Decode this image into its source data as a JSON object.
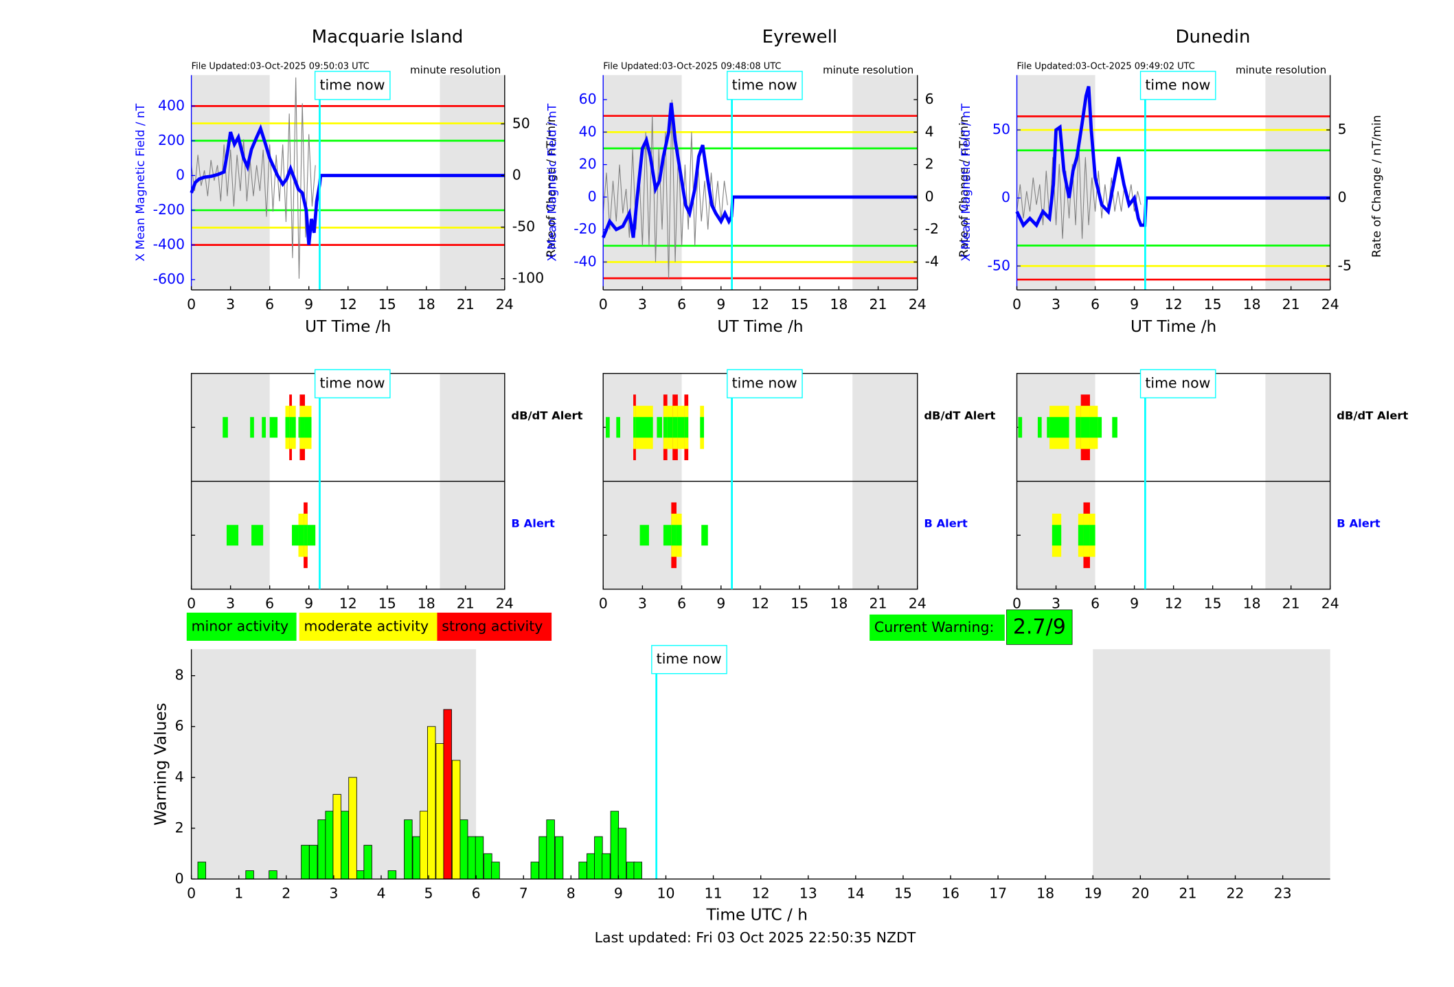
{
  "chart_data": [
    {
      "type": "line",
      "title": "Macquarie Island",
      "note_left": "File Updated:03-Oct-2025 09:50:03 UTC",
      "note_right": "minute resolution",
      "xlabel": "UT Time /h",
      "ylabel": "X Mean Magnetic Field / nT",
      "y2label": "Rate of Change / nT/min",
      "xlim": [
        0,
        24
      ],
      "xticks": [
        0,
        3,
        6,
        9,
        12,
        15,
        18,
        21,
        24
      ],
      "ylim": [
        -659,
        578
      ],
      "yticks": [
        -600,
        -400,
        -200,
        0,
        200,
        400
      ],
      "y2lim": [
        -110.9,
        97.3
      ],
      "y2ticks": [
        -100,
        -50,
        0,
        50
      ],
      "thresholds": [
        {
          "value": 400,
          "color": "#ff0000"
        },
        {
          "value": 300,
          "color": "#ffff00"
        },
        {
          "value": 200,
          "color": "#00ff00"
        },
        {
          "value": -200,
          "color": "#00ff00"
        },
        {
          "value": -300,
          "color": "#ffff00"
        },
        {
          "value": -400,
          "color": "#ff0000"
        }
      ],
      "night": [
        [
          0,
          6
        ],
        [
          19.04,
          24
        ]
      ],
      "time_now": {
        "label": "time now",
        "value": 9.83
      },
      "series": [
        {
          "color": "#808080",
          "axis": "y2",
          "x": [
            0,
            0.25,
            0.5,
            0.75,
            1,
            1.25,
            1.5,
            1.75,
            2,
            2.25,
            2.5,
            2.75,
            3,
            3.25,
            3.5,
            3.75,
            4,
            4.25,
            4.5,
            4.75,
            5,
            5.25,
            5.5,
            5.75,
            6,
            6.25,
            6.5,
            6.75,
            7,
            7.25,
            7.5,
            7.75,
            8,
            8.25,
            8.5,
            8.75,
            9,
            9.25,
            9.5
          ],
          "values": [
            10,
            -15,
            20,
            -10,
            5,
            -20,
            15,
            -5,
            10,
            -25,
            30,
            -20,
            25,
            -30,
            20,
            -15,
            35,
            -25,
            15,
            -20,
            10,
            -15,
            25,
            -40,
            30,
            -35,
            20,
            -25,
            30,
            -45,
            60,
            -80,
            95,
            -100,
            70,
            -60,
            40,
            -30,
            10
          ]
        },
        {
          "color": "#0000ff",
          "x": [
            0,
            0.3,
            0.6,
            1,
            1.5,
            2,
            2.5,
            2.8,
            3,
            3.3,
            3.6,
            4,
            4.3,
            4.6,
            5,
            5.3,
            5.6,
            6,
            6.3,
            6.6,
            7,
            7.3,
            7.6,
            7.9,
            8.2,
            8.5,
            8.8,
            9,
            9.2,
            9.4,
            9.6,
            9.83,
            9.9,
            24
          ],
          "values": [
            -100,
            -40,
            -20,
            -10,
            -5,
            5,
            20,
            150,
            250,
            180,
            220,
            100,
            50,
            150,
            220,
            270,
            200,
            100,
            50,
            0,
            -50,
            -20,
            40,
            -20,
            -80,
            -100,
            -200,
            -400,
            -250,
            -330,
            -150,
            -50,
            0,
            0
          ]
        }
      ]
    },
    {
      "type": "line",
      "title": "Eyrewell",
      "note_left": "File Updated:03-Oct-2025 09:48:08 UTC",
      "note_right": "minute resolution",
      "xlabel": "UT Time /h",
      "ylabel": "X Mean Magnetic Field / nT",
      "y2label": "Rate of Change / nT/min",
      "xlim": [
        0,
        24
      ],
      "xticks": [
        0,
        3,
        6,
        9,
        12,
        15,
        18,
        21,
        24
      ],
      "ylim": [
        -57.2,
        75.1
      ],
      "yticks": [
        -40,
        -20,
        0,
        20,
        40,
        60
      ],
      "y2lim": [
        -5.72,
        7.51
      ],
      "y2ticks": [
        -4,
        -2,
        0,
        2,
        4,
        6
      ],
      "thresholds": [
        {
          "value": 50,
          "color": "#ff0000"
        },
        {
          "value": 40,
          "color": "#ffff00"
        },
        {
          "value": 30,
          "color": "#00ff00"
        },
        {
          "value": -30,
          "color": "#00ff00"
        },
        {
          "value": -40,
          "color": "#ffff00"
        },
        {
          "value": -50,
          "color": "#ff0000"
        }
      ],
      "night": [
        [
          0,
          6
        ],
        [
          19.04,
          24
        ]
      ],
      "time_now": {
        "label": "time now",
        "value": 9.83
      },
      "series": [
        {
          "color": "#808080",
          "axis": "y2",
          "x": [
            0,
            0.25,
            0.5,
            0.75,
            1,
            1.25,
            1.5,
            1.75,
            2,
            2.25,
            2.5,
            2.75,
            3,
            3.25,
            3.5,
            3.75,
            4,
            4.25,
            4.5,
            4.75,
            5,
            5.25,
            5.5,
            5.75,
            6,
            6.25,
            6.5,
            6.75,
            7,
            7.25,
            7.5,
            7.75,
            8,
            8.25,
            8.5,
            8.75,
            9,
            9.25,
            9.5
          ],
          "values": [
            -1,
            1.5,
            -2,
            1,
            -1.5,
            2,
            -1,
            0.5,
            -2.5,
            3,
            -2,
            1.5,
            -3,
            4,
            -3,
            5,
            -4,
            3,
            -2,
            4,
            -5,
            6,
            -4,
            3,
            -3,
            2,
            -2,
            4,
            -3,
            2,
            -1.5,
            1,
            -2,
            1.5,
            -1,
            1,
            -1.5,
            1,
            -0.5
          ]
        },
        {
          "color": "#0000ff",
          "x": [
            0,
            0.5,
            1,
            1.5,
            2,
            2.3,
            2.6,
            3,
            3.3,
            3.6,
            4,
            4.3,
            4.6,
            5,
            5.2,
            5.5,
            5.8,
            6,
            6.3,
            6.6,
            7,
            7.3,
            7.6,
            8,
            8.3,
            8.6,
            9,
            9.3,
            9.6,
            9.8,
            9.9,
            24
          ],
          "values": [
            -25,
            -15,
            -20,
            -18,
            -10,
            -25,
            0,
            30,
            35,
            25,
            5,
            10,
            25,
            40,
            58,
            35,
            20,
            10,
            -5,
            -10,
            5,
            25,
            32,
            10,
            -5,
            -10,
            -15,
            -10,
            -15,
            -12,
            0,
            0
          ]
        }
      ]
    },
    {
      "type": "line",
      "title": "Dunedin",
      "note_left": "File Updated:03-Oct-2025 09:49:02 UTC",
      "note_right": "minute resolution",
      "xlabel": "UT Time /h",
      "ylabel": "X Mean Magnetic Field / nT",
      "y2label": "Rate of Change / nT/min",
      "xlim": [
        0,
        24
      ],
      "xticks": [
        0,
        3,
        6,
        9,
        12,
        15,
        18,
        21,
        24
      ],
      "ylim": [
        -67.6,
        90.3
      ],
      "yticks": [
        -50,
        0,
        50
      ],
      "y2lim": [
        -6.76,
        9.03
      ],
      "y2ticks": [
        -5,
        0,
        5
      ],
      "thresholds": [
        {
          "value": 60,
          "color": "#ff0000"
        },
        {
          "value": 50,
          "color": "#ffff00"
        },
        {
          "value": 35,
          "color": "#00ff00"
        },
        {
          "value": -35,
          "color": "#00ff00"
        },
        {
          "value": -50,
          "color": "#ffff00"
        },
        {
          "value": -60,
          "color": "#ff0000"
        }
      ],
      "night": [
        [
          0,
          6
        ],
        [
          19.04,
          24
        ]
      ],
      "time_now": {
        "label": "time now",
        "value": 9.83
      },
      "series": [
        {
          "color": "#808080",
          "axis": "y2",
          "x": [
            0,
            0.25,
            0.5,
            0.75,
            1,
            1.25,
            1.5,
            1.75,
            2,
            2.25,
            2.5,
            2.75,
            3,
            3.25,
            3.5,
            3.75,
            4,
            4.25,
            4.5,
            4.75,
            5,
            5.25,
            5.5,
            5.75,
            6,
            6.25,
            6.5,
            6.75,
            7,
            7.25,
            7.5,
            7.75,
            8,
            8.25,
            8.5,
            8.75,
            9,
            9.25,
            9.5
          ],
          "values": [
            -1,
            1,
            -1.5,
            0.5,
            -1,
            1.5,
            -0.5,
            1,
            -2,
            2,
            -1.5,
            3,
            -2,
            2.5,
            -3,
            2,
            -1.5,
            2.5,
            -2,
            4,
            -3,
            3,
            -2,
            1.5,
            -1,
            2,
            -1.5,
            1,
            -1,
            1.5,
            -1,
            0.5,
            -1,
            1,
            -0.5,
            1,
            -1,
            0.5,
            -0.5
          ]
        },
        {
          "color": "#0000ff",
          "x": [
            0,
            0.5,
            1,
            1.5,
            2,
            2.5,
            2.8,
            3,
            3.3,
            3.6,
            4,
            4.3,
            4.6,
            5,
            5.3,
            5.5,
            5.7,
            6,
            6.5,
            7,
            7.5,
            7.8,
            8.2,
            8.6,
            9,
            9.3,
            9.5,
            9.8,
            9.9,
            24
          ],
          "values": [
            -10,
            -20,
            -15,
            -20,
            -10,
            -15,
            10,
            50,
            52,
            20,
            0,
            20,
            30,
            55,
            75,
            82,
            50,
            15,
            -5,
            -10,
            15,
            30,
            10,
            -5,
            0,
            -15,
            -20,
            -20,
            0,
            0
          ]
        }
      ]
    },
    {
      "type": "alert",
      "xlim": [
        0,
        24
      ],
      "xticks": [
        0,
        3,
        6,
        9,
        12,
        15,
        18,
        21,
        24
      ],
      "night": [
        [
          0,
          6
        ],
        [
          19.04,
          24
        ]
      ],
      "time_now": {
        "label": "time now",
        "value": 9.83
      },
      "level_colors": [
        "#00ff00",
        "#ffff00",
        "#ff0000"
      ],
      "series": [
        {
          "name": "dB/dT Alert",
          "color": "#000000",
          "start": [
            2.4,
            4.5,
            5.4,
            6.0,
            7.2,
            7.5,
            7.7,
            8.2,
            8.3,
            8.7
          ],
          "end": [
            2.8,
            4.8,
            5.7,
            6.6,
            7.5,
            7.7,
            8.0,
            8.3,
            8.7,
            9.2
          ],
          "level": [
            1,
            1,
            1,
            1,
            2,
            3,
            2,
            1,
            3,
            2
          ]
        },
        {
          "name": "B Alert",
          "color": "#0000ff",
          "start": [
            2.7,
            4.6,
            7.7,
            8.2,
            8.6,
            8.9
          ],
          "end": [
            3.6,
            5.5,
            8.2,
            8.6,
            8.9,
            9.5
          ],
          "level": [
            1,
            1,
            1,
            2,
            3,
            1
          ]
        }
      ]
    },
    {
      "type": "alert",
      "xlim": [
        0,
        24
      ],
      "xticks": [
        0,
        3,
        6,
        9,
        12,
        15,
        18,
        21,
        24
      ],
      "night": [
        [
          0,
          6
        ],
        [
          19.04,
          24
        ]
      ],
      "time_now": {
        "label": "time now",
        "value": 9.83
      },
      "level_colors": [
        "#00ff00",
        "#ffff00",
        "#ff0000"
      ],
      "series": [
        {
          "name": "dB/dT Alert",
          "color": "#000000",
          "start": [
            0.2,
            1.0,
            2.3,
            2.5,
            4.1,
            4.6,
            4.9,
            5.3,
            5.7,
            6.2,
            7.4
          ],
          "end": [
            0.5,
            1.3,
            2.5,
            3.8,
            4.5,
            4.9,
            5.3,
            5.7,
            6.2,
            6.5,
            7.7
          ],
          "level": [
            1,
            1,
            3,
            2,
            1,
            3,
            2,
            3,
            2,
            3,
            2
          ]
        },
        {
          "name": "B Alert",
          "color": "#0000ff",
          "start": [
            2.8,
            4.6,
            5.2,
            5.6,
            7.5
          ],
          "end": [
            3.5,
            5.2,
            5.6,
            6.0,
            8.0
          ],
          "level": [
            1,
            1,
            3,
            2,
            1
          ]
        }
      ]
    },
    {
      "type": "alert",
      "xlim": [
        0,
        24
      ],
      "xticks": [
        0,
        3,
        6,
        9,
        12,
        15,
        18,
        21,
        24
      ],
      "night": [
        [
          0,
          6
        ],
        [
          19.04,
          24
        ]
      ],
      "time_now": {
        "label": "time now",
        "value": 9.83
      },
      "level_colors": [
        "#00ff00",
        "#ffff00",
        "#ff0000"
      ],
      "series": [
        {
          "name": "dB/dT Alert",
          "color": "#000000",
          "start": [
            0.1,
            1.6,
            2.3,
            2.5,
            4.5,
            4.9,
            5.6,
            6.2,
            7.3
          ],
          "end": [
            0.4,
            1.9,
            2.5,
            4.0,
            4.9,
            5.6,
            6.2,
            6.5,
            7.7
          ],
          "level": [
            1,
            1,
            1,
            2,
            2,
            3,
            2,
            1,
            1
          ]
        },
        {
          "name": "B Alert",
          "color": "#0000ff",
          "start": [
            2.7,
            4.7,
            5.1,
            5.6
          ],
          "end": [
            3.4,
            5.1,
            5.6,
            6.0
          ],
          "level": [
            2,
            2,
            3,
            2
          ]
        }
      ]
    },
    {
      "type": "bar",
      "xlabel": "Time UTC / h",
      "ylabel": "Warning Values",
      "xlim": [
        0,
        24
      ],
      "xticks": [
        0,
        1,
        2,
        3,
        4,
        5,
        6,
        7,
        8,
        9,
        10,
        11,
        12,
        13,
        14,
        15,
        16,
        17,
        18,
        19,
        20,
        21,
        22,
        23
      ],
      "ylim": [
        0,
        9.04
      ],
      "yticks": [
        0,
        2,
        4,
        6,
        8
      ],
      "night": [
        [
          0,
          6
        ],
        [
          19,
          24
        ]
      ],
      "time_now": {
        "label": "time now",
        "value": 9.8
      },
      "series": [
        {
          "name": "minor activity",
          "color": "#00ff00",
          "x": [
            0.22,
            1.23,
            1.72,
            2.4,
            2.57,
            2.75,
            2.91,
            3.23,
            3.56,
            3.72,
            4.23,
            4.57,
            4.75,
            5.74,
            5.91,
            6.07,
            6.25,
            6.41,
            7.24,
            7.41,
            7.57,
            7.75,
            8.25,
            8.42,
            8.58,
            8.74,
            8.92,
            9.08,
            9.26,
            9.41
          ],
          "values": [
            0.67,
            0.33,
            0.33,
            1.33,
            1.33,
            2.33,
            2.67,
            2.67,
            0.33,
            1.33,
            0.33,
            2.33,
            1.67,
            2.33,
            1.67,
            1.67,
            1,
            0.67,
            0.67,
            1.67,
            2.33,
            1.67,
            0.67,
            1,
            1.67,
            1,
            2.67,
            2,
            0.67,
            0.67
          ]
        },
        {
          "name": "moderate activity",
          "color": "#ffff00",
          "x": [
            3.07,
            3.4,
            4.9,
            5.06,
            5.24,
            5.58
          ],
          "values": [
            3.33,
            4,
            2.67,
            6,
            5.33,
            4.67
          ]
        },
        {
          "name": "strong activity",
          "color": "#ff0000",
          "x": [
            5.4
          ],
          "values": [
            6.67
          ]
        }
      ]
    }
  ],
  "current_warning": {
    "label": "Current Warning:",
    "value": "2.7/9"
  },
  "last_updated": "Last updated: Fri 03 Oct 2025 22:50:35 NZDT"
}
